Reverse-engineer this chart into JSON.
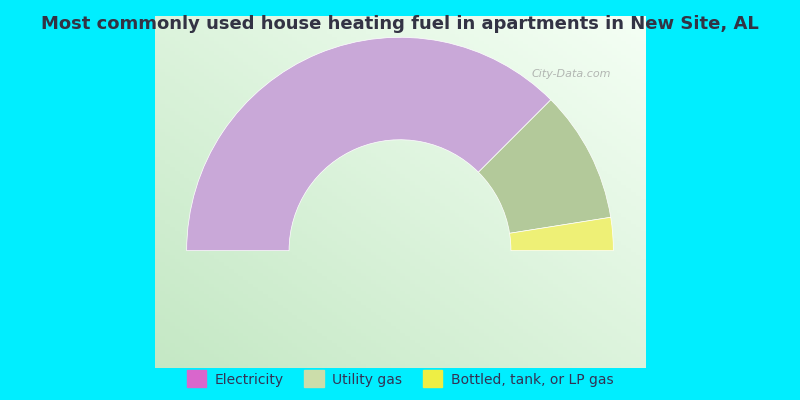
{
  "title": "Most commonly used house heating fuel in apartments in New Site, AL",
  "title_color": "#333344",
  "background_color": "#00eeff",
  "segments": [
    {
      "label": "Electricity",
      "value": 75,
      "color": "#c9a8d8"
    },
    {
      "label": "Utility gas",
      "value": 20,
      "color": "#b3c99a"
    },
    {
      "label": "Bottled, tank, or LP gas",
      "value": 5,
      "color": "#eef076"
    }
  ],
  "legend_marker_colors": [
    "#d966cc",
    "#ccddaa",
    "#eeee44"
  ],
  "watermark": "City-Data.com"
}
